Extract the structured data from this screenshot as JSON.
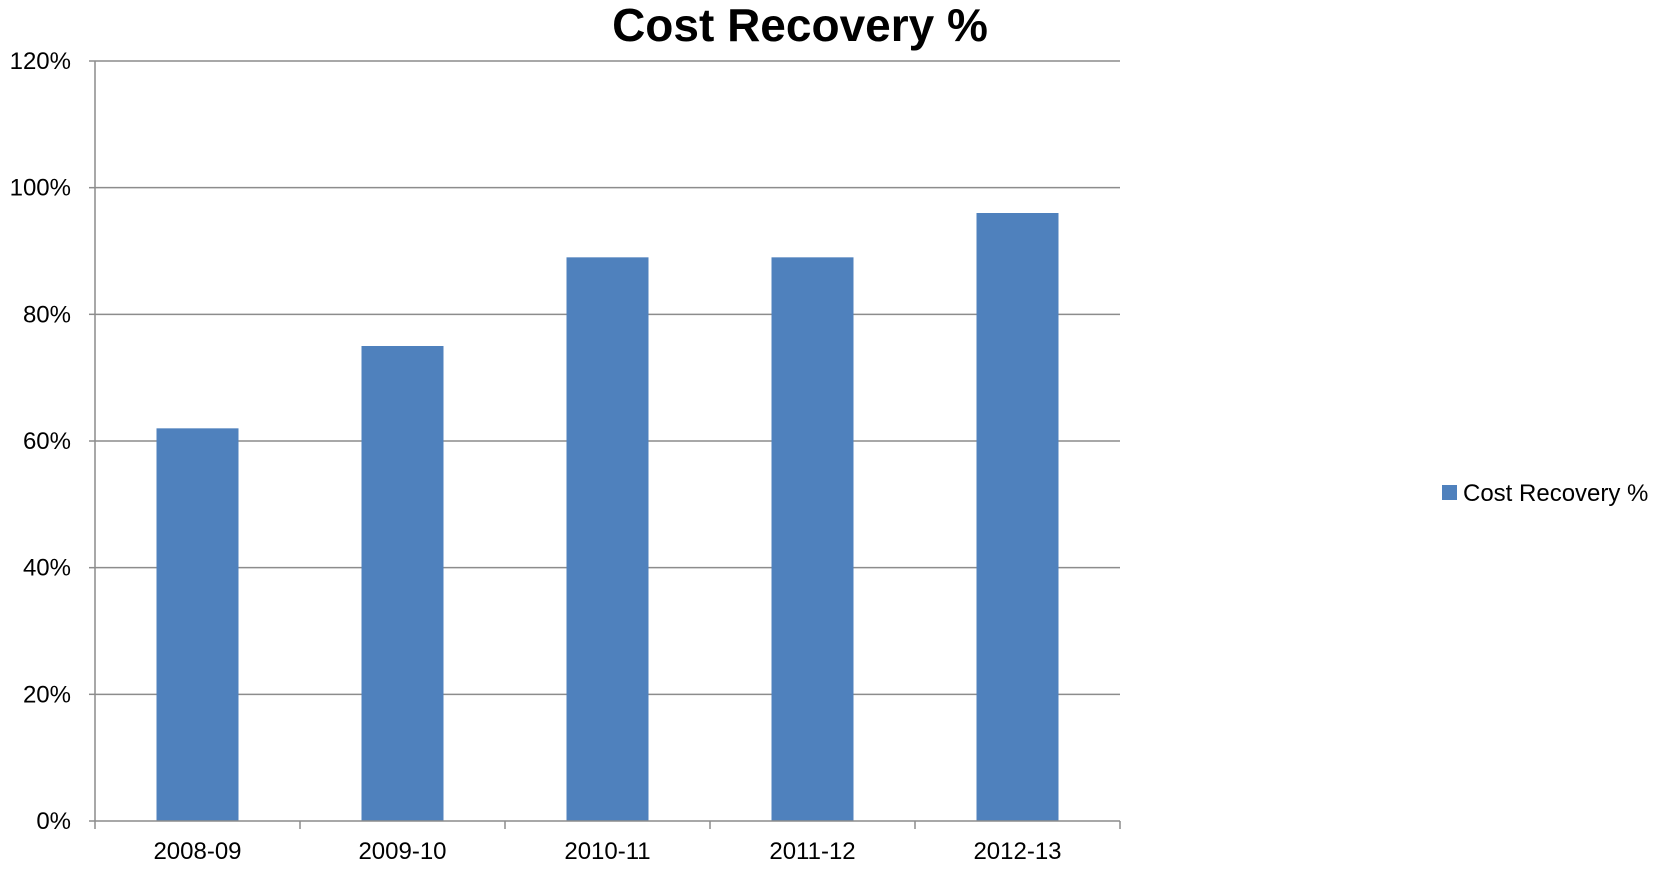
{
  "chart_data": {
    "type": "bar",
    "title": "Cost Recovery %",
    "xlabel": "",
    "ylabel": "",
    "categories": [
      "2008-09",
      "2009-10",
      "2010-11",
      "2011-12",
      "2012-13"
    ],
    "series": [
      {
        "name": "Cost Recovery %",
        "values": [
          62,
          75,
          89,
          89,
          96
        ],
        "color": "#4F81BD"
      }
    ],
    "ylim": [
      0,
      120
    ],
    "y_ticks": [
      0,
      20,
      40,
      60,
      80,
      100,
      120
    ],
    "y_tick_labels": [
      "0%",
      "20%",
      "40%",
      "60%",
      "80%",
      "100%",
      "120%"
    ],
    "grid": true,
    "grid_color": "#8C8C8C",
    "legend_position": "right"
  }
}
